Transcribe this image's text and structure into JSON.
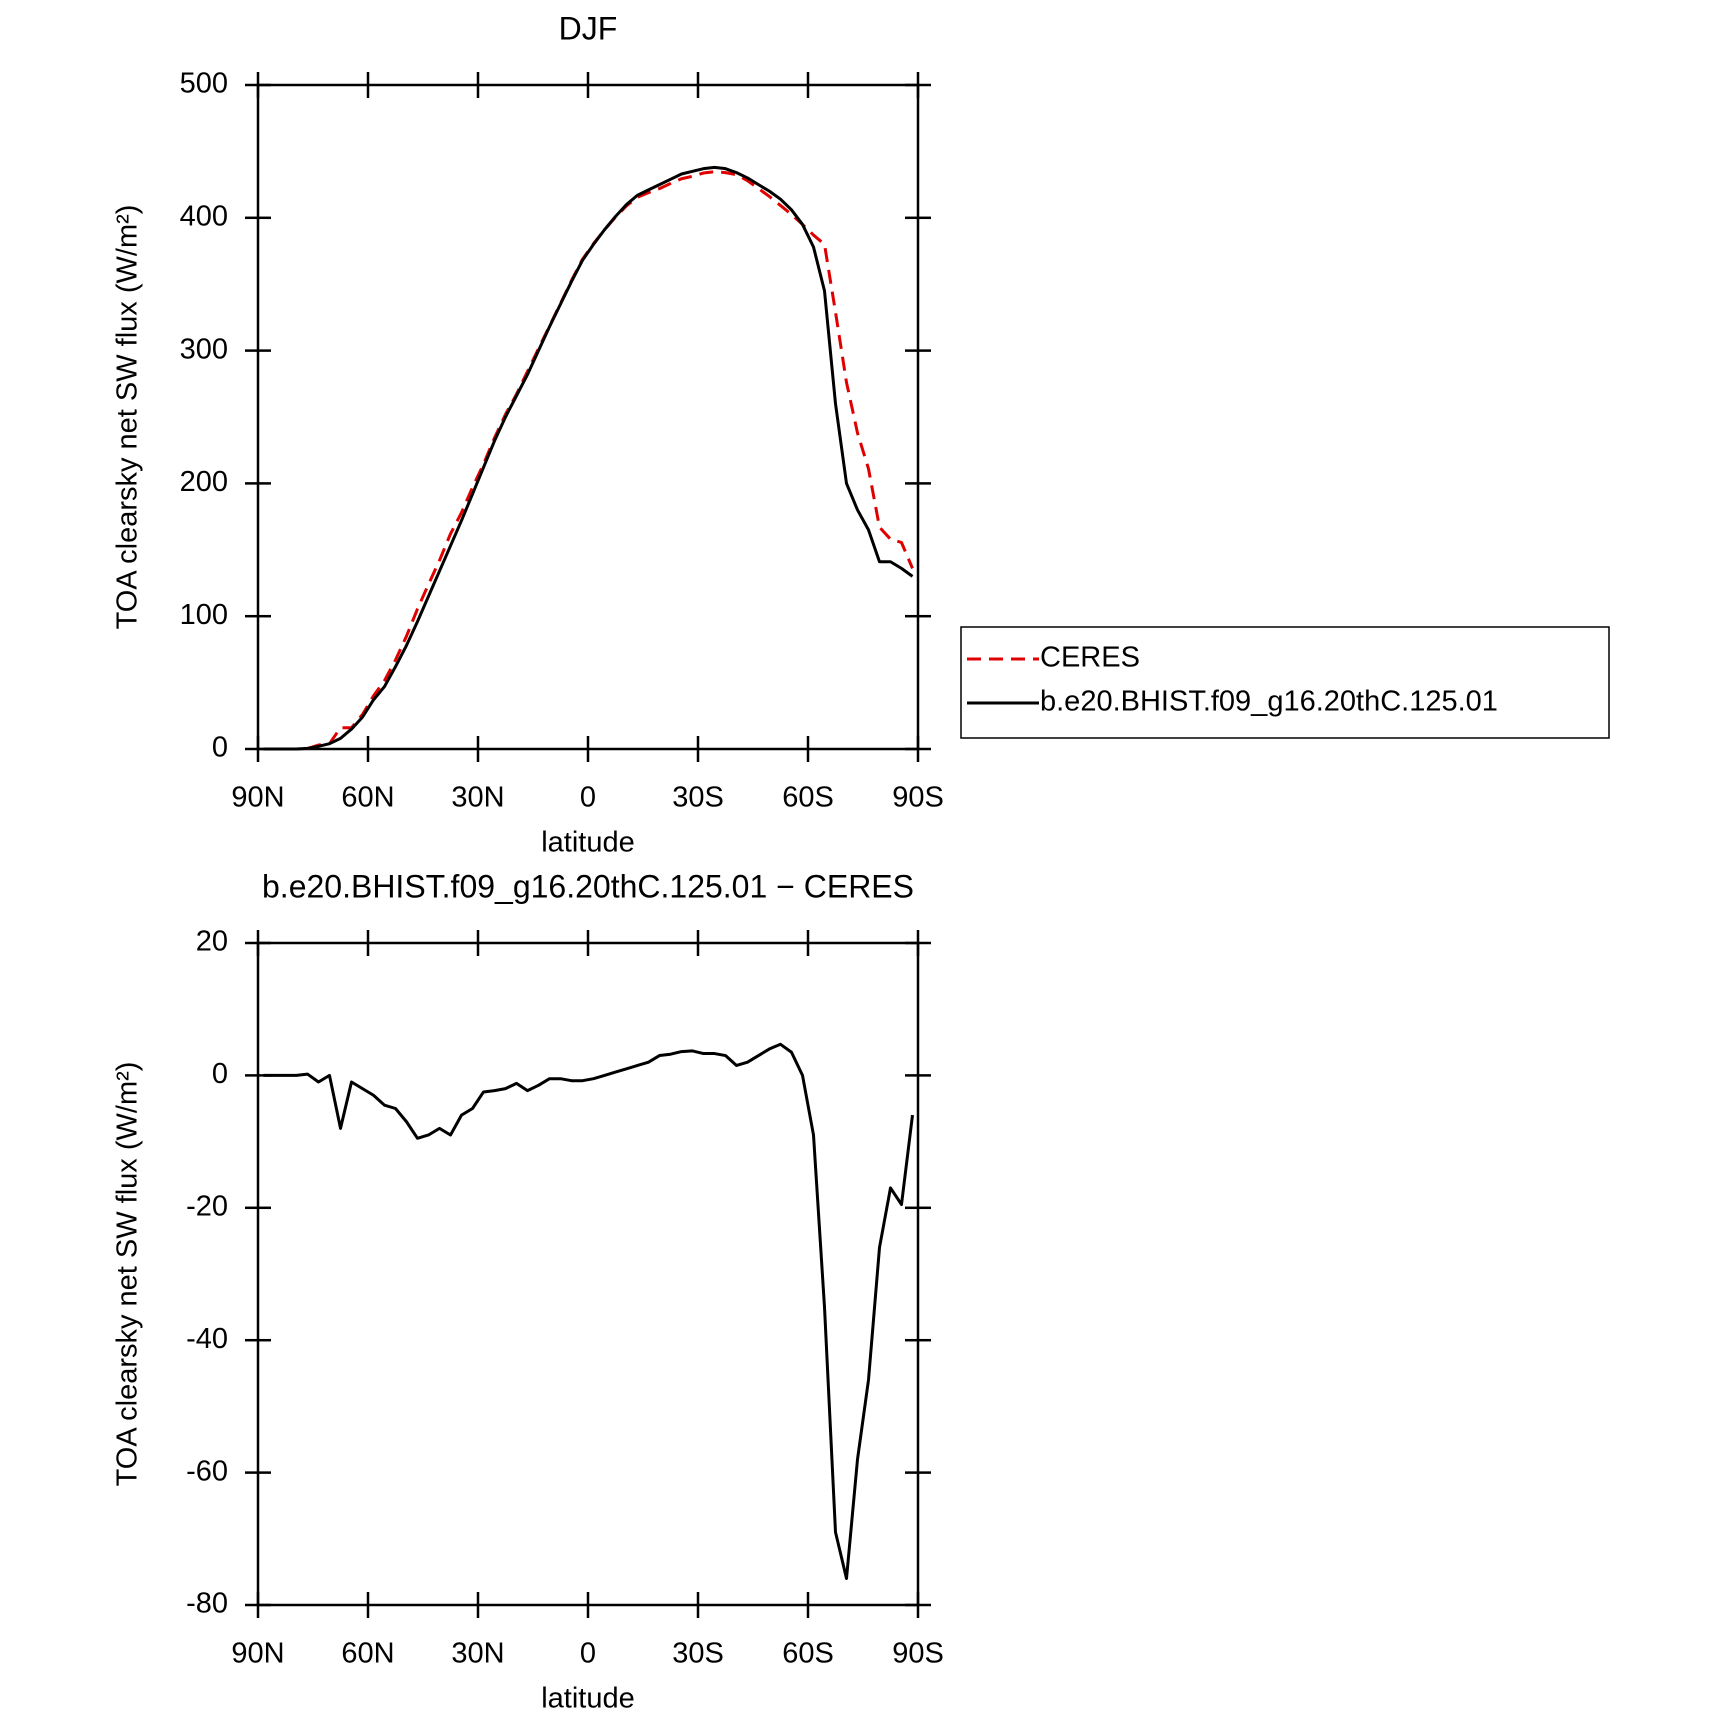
{
  "chart_data": [
    {
      "type": "line",
      "title": "DJF",
      "xlabel": "latitude",
      "ylabel": "TOA clearsky net SW flux (W/m²)",
      "x": [
        88.5,
        85.5,
        82.5,
        79.5,
        76.5,
        73.5,
        70.5,
        67.5,
        64.5,
        61.5,
        58.5,
        55.5,
        52.5,
        49.5,
        46.5,
        43.5,
        40.5,
        37.5,
        34.5,
        31.5,
        28.5,
        25.5,
        22.5,
        19.5,
        16.5,
        13.5,
        10.5,
        7.5,
        4.5,
        1.5,
        -1.5,
        -4.5,
        -7.5,
        -10.5,
        -13.5,
        -16.5,
        -19.5,
        -22.5,
        -25.5,
        -28.5,
        -31.5,
        -34.5,
        -37.5,
        -40.5,
        -43.5,
        -46.5,
        -49.5,
        -52.5,
        -55.5,
        -58.5,
        -61.5,
        -64.5,
        -67.5,
        -70.5,
        -73.5,
        -76.5,
        -79.5,
        -82.5,
        -85.5,
        -88.5
      ],
      "series": [
        {
          "name": "CERES",
          "color": "#e00000",
          "dashed": true,
          "values": [
            0,
            0,
            0,
            0,
            0.3,
            3,
            4,
            16,
            16,
            26,
            40,
            51.5,
            67,
            85,
            105.5,
            124,
            142,
            162,
            178,
            197,
            214.5,
            234.3,
            252,
            267.2,
            284.3,
            301.5,
            318.5,
            335.5,
            352.8,
            368.8,
            380.5,
            391,
            400.5,
            409,
            415.5,
            419,
            422,
            425.8,
            429.4,
            431.3,
            433.7,
            434.7,
            434,
            432.5,
            428,
            422,
            416,
            409.3,
            402.5,
            395,
            387,
            380,
            329,
            276,
            238,
            211,
            167,
            158,
            155.5,
            136
          ]
        },
        {
          "name": "b.e20.BHIST.f09_g16.20thC.125.01",
          "color": "#000000",
          "dashed": false,
          "values": [
            0,
            0,
            0,
            0,
            0.5,
            2,
            4,
            8,
            15,
            24,
            37,
            47,
            62,
            78,
            96,
            115,
            134,
            153,
            172,
            192,
            212,
            232,
            250,
            266,
            282,
            300,
            318,
            335,
            352,
            368,
            380,
            391,
            401,
            410,
            417,
            421,
            425,
            429,
            433,
            435,
            437,
            438,
            437,
            434,
            430,
            425,
            420,
            414,
            406,
            395,
            378,
            345,
            260,
            200,
            180,
            165,
            141,
            141,
            136,
            130
          ]
        }
      ],
      "xlim": [
        90,
        -90
      ],
      "xticks": [
        {
          "value": 90,
          "label": "90N"
        },
        {
          "value": 60,
          "label": "60N"
        },
        {
          "value": 30,
          "label": "30N"
        },
        0,
        {
          "value": -30,
          "label": "30S"
        },
        {
          "value": -60,
          "label": "60S"
        },
        {
          "value": -90,
          "label": "90S"
        }
      ],
      "ylim": [
        0,
        500
      ],
      "yticks": [
        0,
        100,
        200,
        300,
        400,
        500
      ],
      "legend": "outside-right"
    },
    {
      "type": "line",
      "title": "b.e20.BHIST.f09_g16.20thC.125.01 − CERES",
      "xlabel": "latitude",
      "ylabel": "TOA clearsky net SW flux (W/m²)",
      "x": [
        88.5,
        85.5,
        82.5,
        79.5,
        76.5,
        73.5,
        70.5,
        67.5,
        64.5,
        61.5,
        58.5,
        55.5,
        52.5,
        49.5,
        46.5,
        43.5,
        40.5,
        37.5,
        34.5,
        31.5,
        28.5,
        25.5,
        22.5,
        19.5,
        16.5,
        13.5,
        10.5,
        7.5,
        4.5,
        1.5,
        -1.5,
        -4.5,
        -7.5,
        -10.5,
        -13.5,
        -16.5,
        -19.5,
        -22.5,
        -25.5,
        -28.5,
        -31.5,
        -34.5,
        -37.5,
        -40.5,
        -43.5,
        -46.5,
        -49.5,
        -52.5,
        -55.5,
        -58.5,
        -61.5,
        -64.5,
        -67.5,
        -70.5,
        -73.5,
        -76.5,
        -79.5,
        -82.5,
        -85.5,
        -88.5
      ],
      "series": [
        {
          "name": "b.e20.BHIST.f09_g16.20thC.125.01 − CERES",
          "color": "#000000",
          "dashed": false,
          "values": [
            0,
            0,
            0,
            0,
            0.2,
            -1,
            0,
            -8,
            -1,
            -2,
            -3,
            -4.5,
            -5,
            -7,
            -9.5,
            -9,
            -8,
            -9,
            -6,
            -5,
            -2.5,
            -2.3,
            -2,
            -1.2,
            -2.3,
            -1.5,
            -0.5,
            -0.5,
            -0.8,
            -0.8,
            -0.5,
            0,
            0.5,
            1,
            1.5,
            2,
            3,
            3.2,
            3.6,
            3.7,
            3.3,
            3.3,
            3,
            1.5,
            2,
            3,
            4,
            4.7,
            3.5,
            0,
            -9,
            -35,
            -69,
            -76,
            -58,
            -46,
            -26,
            -17,
            -19.5,
            -6
          ]
        }
      ],
      "xlim": [
        90,
        -90
      ],
      "xticks": [
        {
          "value": 90,
          "label": "90N"
        },
        {
          "value": 60,
          "label": "60N"
        },
        {
          "value": 30,
          "label": "30N"
        },
        0,
        {
          "value": -30,
          "label": "30S"
        },
        {
          "value": -60,
          "label": "60S"
        },
        {
          "value": -90,
          "label": "90S"
        }
      ],
      "ylim": [
        -80,
        20
      ],
      "yticks": [
        -80,
        -60,
        -40,
        -20,
        0,
        20
      ]
    }
  ]
}
